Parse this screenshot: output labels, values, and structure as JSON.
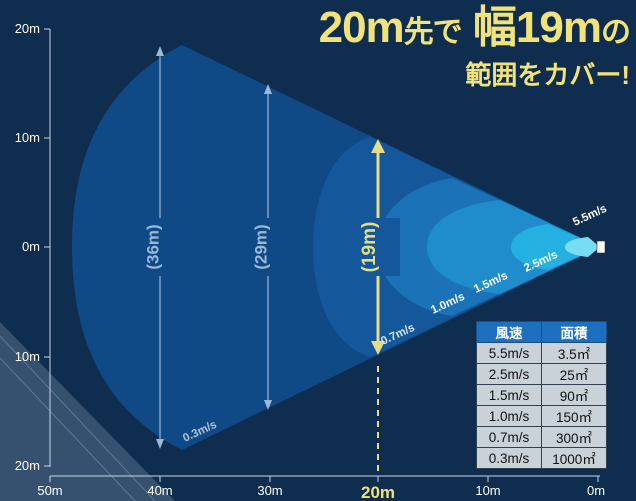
{
  "headline": {
    "line1_big": "20m",
    "line1_small": "先で",
    "line1_big2": "幅19m",
    "line1_small2": "の",
    "line2": "範囲をカバー!"
  },
  "y_axis_labels": [
    "20m",
    "10m",
    "0m",
    "10m",
    "20m"
  ],
  "x_axis_labels": [
    "50m",
    "40m",
    "30m",
    "20m",
    "10m",
    "0m"
  ],
  "dimension_labels": [
    "(36m)",
    "(29m)",
    "(19m)"
  ],
  "speed_labels": [
    "5.5m/s",
    "2.5m/s",
    "1.5m/s",
    "1.0m/s",
    "0.7m/s",
    "0.3m/s"
  ],
  "table": {
    "headers": [
      "風速",
      "面積"
    ],
    "rows": [
      [
        "5.5m/s",
        "3.5㎡"
      ],
      [
        "2.5m/s",
        "25㎡"
      ],
      [
        "1.5m/s",
        "90㎡"
      ],
      [
        "1.0m/s",
        "150㎡"
      ],
      [
        "0.7m/s",
        "300㎡"
      ],
      [
        "0.3m/s",
        "1000㎡"
      ]
    ]
  },
  "colors": {
    "background": "#0f2d4f",
    "headline": "#f2e27a",
    "highlight": "#e8dc85",
    "table_header": "#1d6fc0"
  }
}
